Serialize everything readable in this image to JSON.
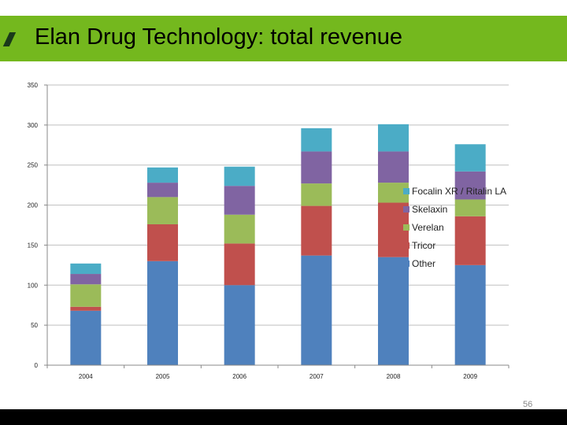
{
  "slide": {
    "title": "Elan Drug Technology: total revenue",
    "page_number": "56"
  },
  "colors": {
    "title_bar": "#74b81e",
    "other": "#4f81bd",
    "tricor": "#c0504d",
    "verelan": "#9bbb59",
    "skelaxin": "#8064a2",
    "focalin": "#4bacc6"
  },
  "chart_data": {
    "type": "bar",
    "stacked": true,
    "categories": [
      "2004",
      "2005",
      "2006",
      "2007",
      "2008",
      "2009"
    ],
    "series": [
      {
        "name": "Other",
        "color": "#4f81bd",
        "values": [
          68,
          130,
          100,
          137,
          135,
          125
        ]
      },
      {
        "name": "Tricor",
        "color": "#c0504d",
        "values": [
          5,
          46,
          52,
          62,
          68,
          61
        ]
      },
      {
        "name": "Verelan",
        "color": "#9bbb59",
        "values": [
          28,
          34,
          36,
          28,
          25,
          21
        ]
      },
      {
        "name": "Skelaxin",
        "color": "#8064a2",
        "values": [
          13,
          18,
          36,
          40,
          39,
          35
        ]
      },
      {
        "name": "Focalin XR / Ritalin LA",
        "color": "#4bacc6",
        "values": [
          13,
          19,
          24,
          29,
          34,
          34
        ]
      }
    ],
    "yticks": [
      0,
      50,
      100,
      150,
      200,
      250,
      300,
      350
    ],
    "ylim": [
      0,
      350
    ],
    "grid": true,
    "legend_position": "right"
  }
}
